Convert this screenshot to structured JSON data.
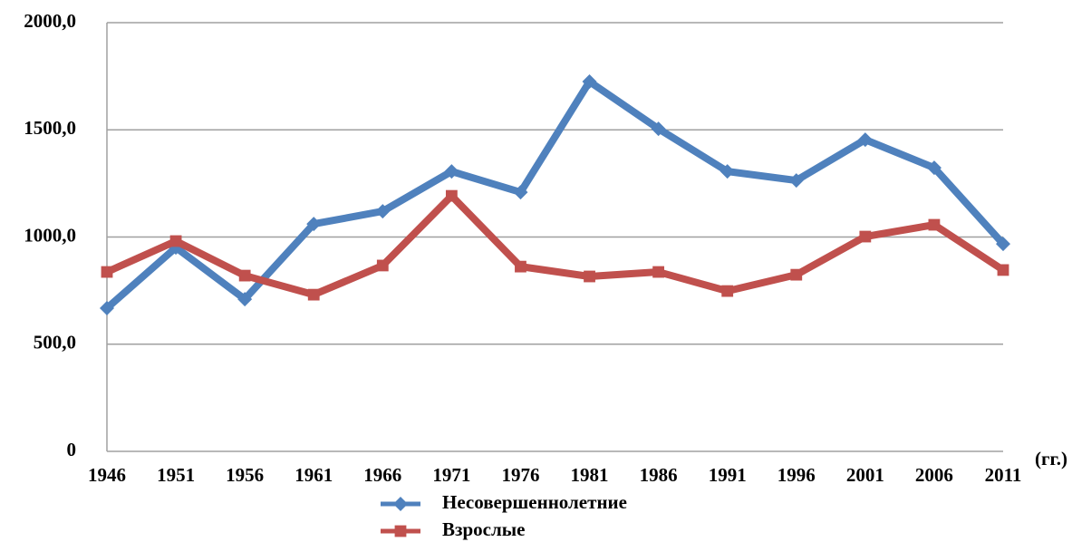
{
  "chart_data": {
    "type": "line",
    "x_label": "(гг.)",
    "categories": [
      "1946",
      "1951",
      "1956",
      "1961",
      "1966",
      "1971",
      "1976",
      "1981",
      "1986",
      "1991",
      "1996",
      "2001",
      "2006",
      "2011"
    ],
    "series": [
      {
        "name": "Несовершеннолетние",
        "color": "#4f81bd",
        "marker": "diamond",
        "values": [
          668,
          951,
          710,
          1061,
          1120,
          1306,
          1209,
          1725,
          1505,
          1306,
          1264,
          1454,
          1323,
          968
        ]
      },
      {
        "name": "Взрослые",
        "color": "#c0504d",
        "marker": "square",
        "values": [
          837,
          981,
          820,
          731,
          867,
          1192,
          862,
          816,
          837,
          748,
          824,
          1002,
          1057,
          846
        ]
      }
    ],
    "ylim": [
      0,
      2000
    ],
    "yticks": [
      0,
      {
        "value": 500,
        "label": "500,0"
      },
      {
        "value": 1000,
        "label": "1000,0"
      },
      {
        "value": 1500,
        "label": "1500,0"
      },
      {
        "value": 2000,
        "label": "2000,0"
      }
    ],
    "grid": true,
    "legend": "bottom"
  }
}
